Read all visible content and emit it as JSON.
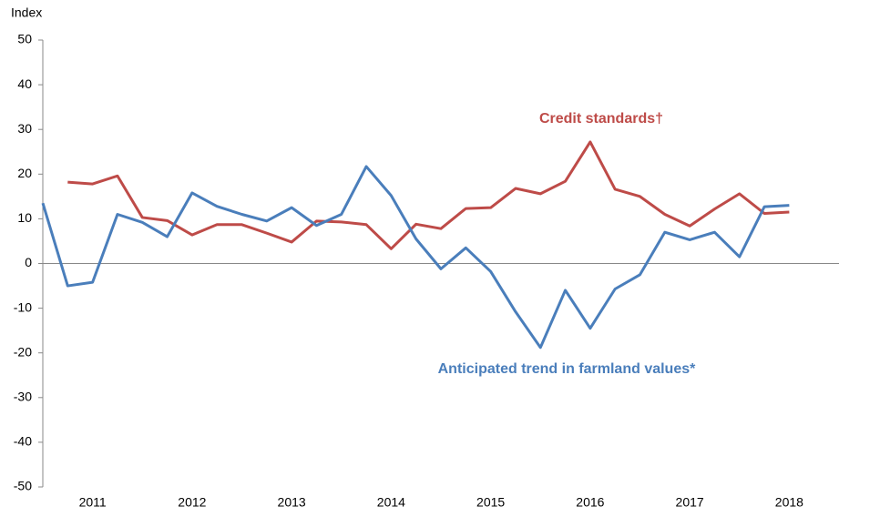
{
  "chart_data": {
    "type": "line",
    "y_label": "Index",
    "x": [
      2011,
      2011.25,
      2011.5,
      2011.75,
      2012,
      2012.25,
      2012.5,
      2012.75,
      2013,
      2013.25,
      2013.5,
      2013.75,
      2014,
      2014.25,
      2014.5,
      2014.75,
      2015,
      2015.25,
      2015.5,
      2015.75,
      2016,
      2016.25,
      2016.5,
      2016.75,
      2017,
      2017.25,
      2017.5,
      2017.75,
      2018,
      2018.25,
      2018.5
    ],
    "series": [
      {
        "name": "Credit standards†",
        "color": "#be4b48",
        "values": [
          null,
          18.2,
          17.8,
          19.6,
          10.3,
          9.6,
          6.4,
          8.7,
          8.7,
          6.8,
          4.8,
          9.5,
          9.3,
          8.7,
          3.3,
          8.8,
          7.8,
          12.3,
          12.5,
          16.8,
          15.6,
          18.4,
          27.2,
          16.6,
          15,
          11,
          8.4,
          12.2,
          15.6,
          11.2,
          11.5
        ]
      },
      {
        "name": "Anticipated trend in farmland values*",
        "color": "#4a7ebb",
        "values": [
          13.5,
          -5,
          -4.2,
          11,
          9.2,
          6,
          15.8,
          12.8,
          11,
          9.5,
          12.5,
          8.5,
          11,
          21.7,
          15.2,
          5.5,
          -1.2,
          3.5,
          -1.8,
          -10.8,
          -18.8,
          -6,
          -14.5,
          -5.7,
          -2.5,
          7,
          5.3,
          7,
          1.5,
          12.7,
          13
        ]
      }
    ],
    "xlim": [
      2011,
      2019
    ],
    "xticks": [
      {
        "value": 2011.5,
        "label": "2011"
      },
      {
        "value": 2012.5,
        "label": "2012"
      },
      {
        "value": 2013.5,
        "label": "2013"
      },
      {
        "value": 2014.5,
        "label": "2014"
      },
      {
        "value": 2015.5,
        "label": "2015"
      },
      {
        "value": 2016.5,
        "label": "2016"
      },
      {
        "value": 2017.5,
        "label": "2017"
      },
      {
        "value": 2018.5,
        "label": "2018"
      }
    ],
    "ylim": [
      -50,
      50
    ],
    "yticks": [
      -50,
      -40,
      -30,
      -20,
      -10,
      0,
      10,
      20,
      30,
      40,
      50
    ],
    "grid": false
  }
}
